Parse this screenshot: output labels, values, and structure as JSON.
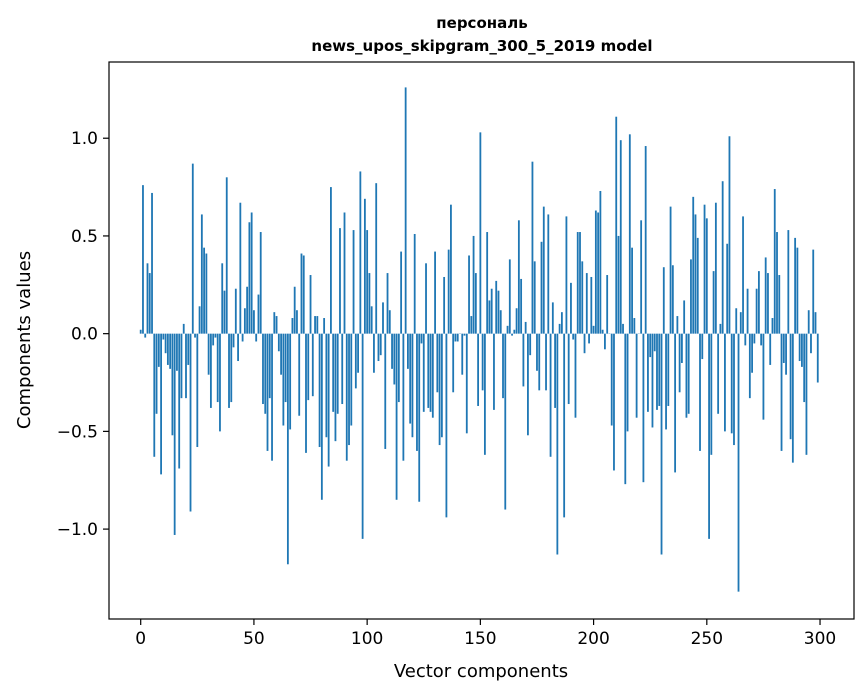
{
  "chart_data": {
    "type": "bar",
    "title": "персональ\nnews_upos_skipgram_300_5_2019 model",
    "title_lines": [
      "персональ",
      "news_upos_skipgram_300_5_2019 model"
    ],
    "xlabel": "Vector components",
    "ylabel": "Components values",
    "xlim": [
      -14,
      315
    ],
    "ylim": [
      -1.46,
      1.39
    ],
    "xticks": [
      0,
      50,
      100,
      150,
      200,
      250,
      300
    ],
    "xtick_labels": [
      "0",
      "50",
      "100",
      "150",
      "200",
      "250",
      "300"
    ],
    "yticks": [
      -1.0,
      -0.5,
      0.0,
      0.5,
      1.0
    ],
    "ytick_labels": [
      "−1.0",
      "−0.5",
      "0.0",
      "0.5",
      "1.0"
    ],
    "grid": false,
    "bar_color": "#1f77b4",
    "x": "0..299",
    "values": [
      0.02,
      0.76,
      -0.02,
      0.36,
      0.31,
      0.72,
      -0.63,
      -0.41,
      -0.17,
      -0.72,
      -0.03,
      -0.1,
      -0.16,
      -0.18,
      -0.52,
      -1.03,
      -0.19,
      -0.69,
      -0.33,
      0.05,
      -0.33,
      -0.16,
      -0.91,
      0.87,
      -0.02,
      -0.58,
      0.14,
      0.61,
      0.44,
      0.41,
      -0.21,
      -0.38,
      -0.06,
      -0.02,
      -0.35,
      -0.5,
      0.36,
      0.22,
      0.8,
      -0.38,
      -0.35,
      -0.07,
      0.23,
      -0.14,
      0.67,
      -0.04,
      0.13,
      0.24,
      0.57,
      0.62,
      0.12,
      -0.04,
      0.2,
      0.52,
      -0.36,
      -0.41,
      -0.6,
      -0.33,
      -0.65,
      0.11,
      0.09,
      -0.09,
      -0.21,
      -0.47,
      -0.35,
      -1.18,
      -0.49,
      0.08,
      0.24,
      0.12,
      -0.42,
      0.41,
      0.4,
      -0.61,
      -0.34,
      0.3,
      -0.32,
      0.09,
      0.09,
      -0.58,
      -0.85,
      0.08,
      -0.53,
      -0.68,
      0.75,
      -0.4,
      -0.55,
      -0.41,
      0.54,
      -0.36,
      0.62,
      -0.65,
      -0.57,
      -0.47,
      0.53,
      -0.28,
      -0.2,
      0.83,
      -1.05,
      0.69,
      0.53,
      0.31,
      0.14,
      -0.2,
      0.77,
      -0.14,
      -0.11,
      0.16,
      -0.59,
      0.31,
      0.12,
      -0.18,
      -0.26,
      -0.85,
      -0.35,
      0.42,
      -0.65,
      1.26,
      -0.18,
      -0.46,
      -0.53,
      0.51,
      -0.6,
      -0.86,
      -0.05,
      -0.4,
      0.36,
      -0.38,
      -0.4,
      -0.43,
      0.42,
      -0.3,
      -0.57,
      -0.53,
      0.29,
      -0.94,
      0.43,
      0.66,
      -0.3,
      -0.04,
      -0.04,
      0.0,
      -0.21,
      -0.01,
      -0.51,
      0.4,
      0.09,
      0.5,
      0.31,
      -0.37,
      1.03,
      -0.29,
      -0.62,
      0.52,
      0.17,
      0.23,
      -0.39,
      0.27,
      0.22,
      0.12,
      -0.33,
      -0.9,
      0.04,
      0.38,
      -0.01,
      0.02,
      0.13,
      0.58,
      0.28,
      -0.27,
      0.06,
      -0.52,
      -0.11,
      0.88,
      0.37,
      -0.19,
      -0.29,
      0.47,
      0.65,
      -0.29,
      0.61,
      -0.63,
      0.16,
      -0.38,
      -1.13,
      0.05,
      0.11,
      -0.94,
      0.6,
      -0.36,
      0.26,
      -0.03,
      -0.43,
      0.52,
      0.52,
      0.37,
      -0.1,
      0.31,
      -0.05,
      0.29,
      0.04,
      0.63,
      0.62,
      0.73,
      0.02,
      -0.08,
      0.3,
      0.0,
      -0.47,
      -0.7,
      1.11,
      0.5,
      0.99,
      0.05,
      -0.77,
      -0.5,
      1.02,
      0.44,
      0.08,
      -0.43,
      0.0,
      0.58,
      -0.76,
      0.96,
      -0.4,
      -0.12,
      -0.48,
      -0.09,
      -0.39,
      -0.37,
      -1.13,
      0.34,
      -0.49,
      -0.37,
      0.65,
      0.35,
      -0.71,
      0.09,
      -0.3,
      -0.15,
      0.17,
      -0.43,
      -0.41,
      0.38,
      0.7,
      0.61,
      0.49,
      -0.6,
      -0.13,
      0.66,
      0.59,
      -1.05,
      -0.62,
      0.32,
      0.67,
      -0.41,
      0.05,
      0.78,
      -0.5,
      0.46,
      1.01,
      -0.51,
      -0.57,
      0.13,
      -1.32,
      0.11,
      0.6,
      -0.06,
      0.23,
      -0.33,
      -0.2,
      -0.05,
      0.23,
      0.32,
      -0.06,
      -0.44,
      0.39,
      0.31,
      -0.16,
      0.08,
      0.74,
      0.52,
      0.3,
      -0.6,
      -0.15,
      -0.21,
      0.53,
      -0.54,
      -0.66,
      0.49,
      0.44,
      -0.14,
      -0.17,
      -0.35,
      -0.62,
      0.12,
      -0.1,
      0.43,
      0.11,
      -0.25
    ]
  }
}
